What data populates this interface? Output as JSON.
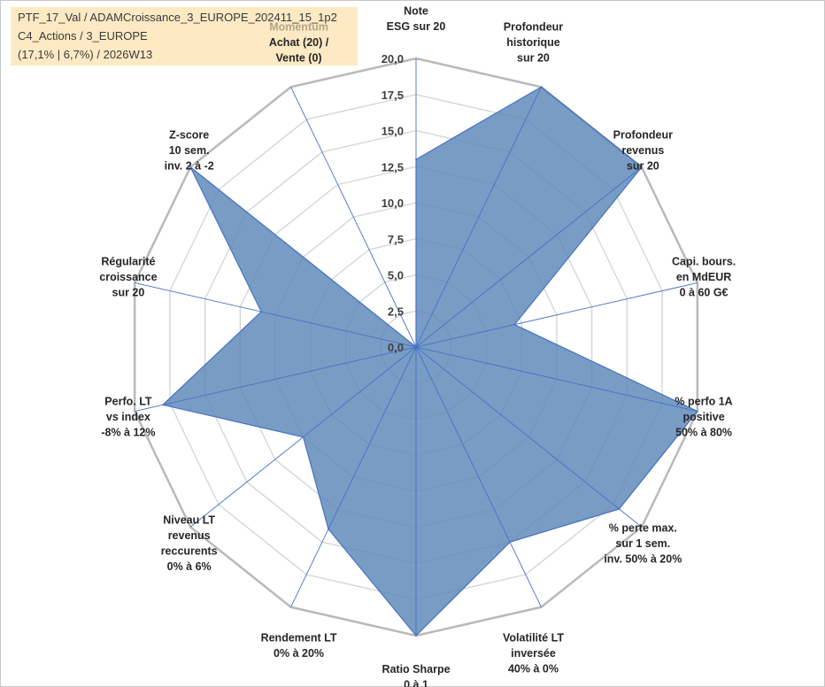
{
  "info_box": {
    "line1": "PTF_17_Val / ADAMCroissance_3_EUROPE_202411_15_1p2",
    "line2": "C4_Actions / 3_EUROPE",
    "line3": "(17,1% | 6,7%) / 2026W13"
  },
  "chart_data": {
    "type": "radar",
    "rmax": 20,
    "tick_step": 2.5,
    "tick_labels": [
      "0,0",
      "2,5",
      "5,0",
      "7,5",
      "10,0",
      "12,5",
      "15,0",
      "17,5",
      "20,0"
    ],
    "grid": true,
    "axes": [
      {
        "lines": [
          "Note",
          "ESG sur 20"
        ]
      },
      {
        "lines": [
          "Profondeur",
          "historique",
          "sur 20"
        ]
      },
      {
        "lines": [
          "Profondeur",
          "revenus",
          "sur 20"
        ]
      },
      {
        "lines": [
          "Capi. bours.",
          "en MdEUR",
          "0 à 60 G€"
        ]
      },
      {
        "lines": [
          "% perfo 1A",
          "positive",
          "50% à 80%"
        ]
      },
      {
        "lines": [
          "% perte max.",
          "sur 1 sem.",
          "inv. 50% à 20%"
        ]
      },
      {
        "lines": [
          "Volatilité LT",
          "inversée",
          "40% à 0%"
        ]
      },
      {
        "lines": [
          "Ratio Sharpe",
          "0 à 1"
        ]
      },
      {
        "lines": [
          "Rendement LT",
          "0% à 20%"
        ]
      },
      {
        "lines": [
          "Niveau LT",
          "revenus",
          "reccurents",
          "0% à 6%"
        ]
      },
      {
        "lines": [
          "Perfo. LT",
          "vs index",
          "-8% à 12%"
        ]
      },
      {
        "lines": [
          "Régularité",
          "croissance",
          "sur 20"
        ]
      },
      {
        "lines": [
          "Z-score",
          "10 sem.",
          "inv. 2 à -2"
        ]
      },
      {
        "lines": [
          "Achat (20) /",
          "Vente (0)"
        ],
        "header": "Momentum"
      }
    ],
    "series": [
      {
        "values": [
          13,
          20,
          20,
          7,
          20,
          18,
          15,
          20,
          14,
          10,
          18,
          11,
          20,
          0
        ],
        "color": "#5b86b8"
      }
    ]
  }
}
